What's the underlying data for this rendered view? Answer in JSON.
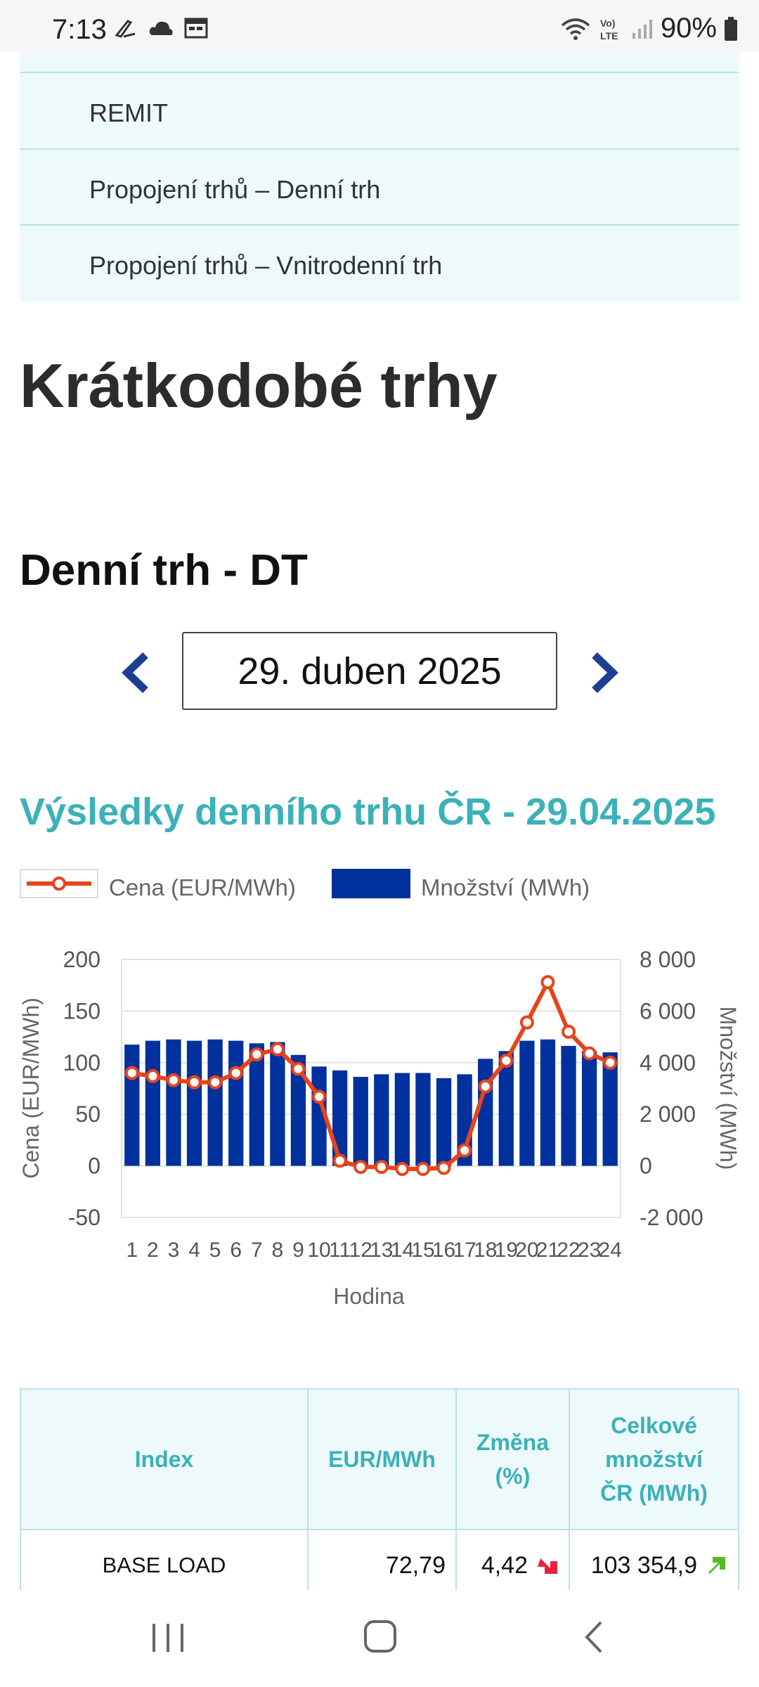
{
  "status": {
    "time": "7:13",
    "battery": "90%",
    "network": "Vo) LTE"
  },
  "menu": {
    "items": [
      "REMIT",
      "Propojení trhů – Denní trh",
      "Propojení trhů – Vnitrodenní trh"
    ]
  },
  "page_title": "Krátkodobé trhy",
  "section_title": "Denní trh - DT",
  "date_picker": {
    "value": "29. duben 2025"
  },
  "chart_title": "Výsledky denního trhu ČR - 29.04.2025",
  "colors": {
    "accent": "#3bb1b8",
    "price_line": "#e8431c",
    "bars": "#00319c"
  },
  "chart_data": {
    "type": "bar",
    "xlabel": "Hodina",
    "ylabel_left": "Cena (EUR/MWh)",
    "ylabel_right": "Množství (MWh)",
    "ylim_left": [
      -50,
      200
    ],
    "ylim_right": [
      -2000,
      8000
    ],
    "yticks_left": [
      "200",
      "150",
      "100",
      "50",
      "0",
      "-50"
    ],
    "yticks_right": [
      "8 000",
      "6 000",
      "4 000",
      "2 000",
      "0",
      "-2 000"
    ],
    "categories": [
      "1",
      "2",
      "3",
      "4",
      "5",
      "6",
      "7",
      "8",
      "9",
      "10",
      "11",
      "12",
      "13",
      "14",
      "15",
      "16",
      "17",
      "18",
      "19",
      "20",
      "21",
      "22",
      "23",
      "24"
    ],
    "legend": "top-left",
    "grid": true,
    "series": [
      {
        "name": "Cena (EUR/MWh)",
        "type": "line",
        "axis": "left",
        "values": [
          90,
          87,
          83,
          81,
          81,
          90,
          108,
          113,
          94,
          67,
          5,
          -1,
          -1,
          -3,
          -3,
          -2,
          15,
          77,
          102,
          139,
          178,
          130,
          109,
          100
        ]
      },
      {
        "name": "Množství (MWh)",
        "type": "bar",
        "axis": "right",
        "values": [
          4700,
          4850,
          4900,
          4850,
          4900,
          4850,
          4750,
          4800,
          4300,
          3850,
          3700,
          3450,
          3550,
          3600,
          3600,
          3400,
          3550,
          4150,
          4450,
          4850,
          4900,
          4650,
          4450,
          4400
        ]
      }
    ]
  },
  "table": {
    "headers": [
      "Index",
      "EUR/MWh",
      "Změna (%)",
      "Celkové množství ČR (MWh)"
    ],
    "rows": [
      {
        "index": "BASE LOAD",
        "price": "72,79",
        "change": "4,42",
        "total": "103 354,9"
      }
    ]
  }
}
